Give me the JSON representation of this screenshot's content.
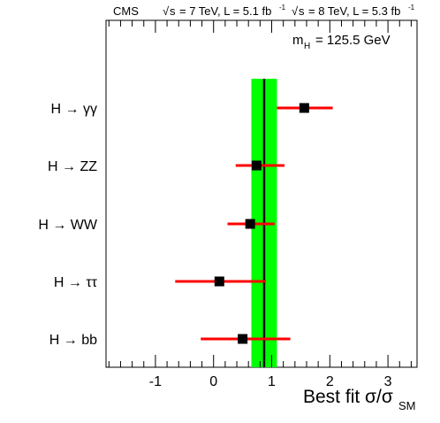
{
  "header": {
    "experiment": "CMS",
    "lumi_7": "= 7 TeV, L = 5.1 fb",
    "lumi_8": "= 8 TeV, L = 5.3 fb",
    "sqrt_s": "s",
    "inv_exp": "-1"
  },
  "chart_data": {
    "type": "scatter",
    "annotation": {
      "mass_prefix": "m",
      "mass_sub": "H",
      "mass_value": "= 125.5 GeV"
    },
    "xlabel": {
      "main": "Best fit σ/σ",
      "sub": "SM"
    },
    "xlim": [
      -1.85,
      3.5
    ],
    "x_ticks": [
      -1,
      0,
      1,
      2,
      3
    ],
    "x_tick_labels": [
      "-1",
      "0",
      "1",
      "2",
      "3"
    ],
    "combined": {
      "value": 0.87,
      "band_low": 0.65,
      "band_high": 1.09
    },
    "channels": [
      {
        "label": "H → γγ",
        "value": 1.56,
        "err_low": 1.09,
        "err_high": 2.05
      },
      {
        "label": "H → ZZ",
        "value": 0.74,
        "err_low": 0.38,
        "err_high": 1.22
      },
      {
        "label": "H → WW",
        "value": 0.63,
        "err_low": 0.24,
        "err_high": 1.05
      },
      {
        "label": "H → ττ",
        "value": 0.1,
        "err_low": -0.66,
        "err_high": 0.9
      },
      {
        "label": "H → bb",
        "value": 0.5,
        "err_low": -0.22,
        "err_high": 1.32
      }
    ],
    "colors": {
      "band": "#00ff00",
      "error_bar": "#ff0000",
      "marker": "#000000",
      "combined_line": "#000000"
    },
    "grid": false,
    "legend": "none"
  }
}
